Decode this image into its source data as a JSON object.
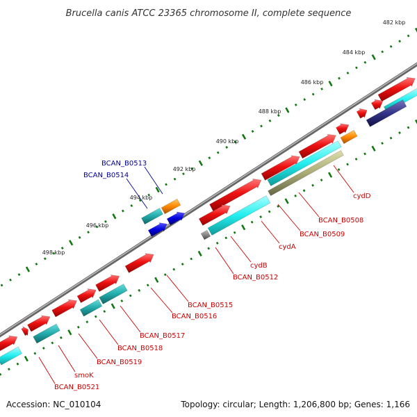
{
  "title": "Brucella canis ATCC 23365 chromosome II, complete sequence",
  "footer": {
    "accession": "Accession: NC_010104",
    "summary": "Topology: circular; Length: 1,206,800 bp; Genes: 1,166"
  },
  "kbp_labels": [
    "482 kbp",
    "484 kbp",
    "486 kbp",
    "488 kbp",
    "490 kbp",
    "492 kbp",
    "494 kbp",
    "496 kbp",
    "498 kbp"
  ],
  "gene_labels_red": [
    "cydD",
    "BCAN_B0508",
    "BCAN_B0509",
    "cydA",
    "cydB",
    "BCAN_B0512",
    "BCAN_B0515",
    "BCAN_B0516",
    "BCAN_B0517",
    "BCAN_B0518",
    "BCAN_B0519",
    "smoK",
    "BCAN_B0521"
  ],
  "gene_labels_blue": [
    "BCAN_B0513",
    "BCAN_B0514"
  ],
  "colors": {
    "forward_cds": "#ee1111",
    "cyan_feature": "#22dddd",
    "teal_feature": "#22aaaa",
    "orange_feature": "#ff8800",
    "blue_feature": "#0000dd",
    "navy_feature": "#333388",
    "olive_feature": "#aaaa77",
    "backbone": "#888888",
    "tick": "#117711",
    "red_label": "#cc0000",
    "blue_label": "#000099"
  }
}
